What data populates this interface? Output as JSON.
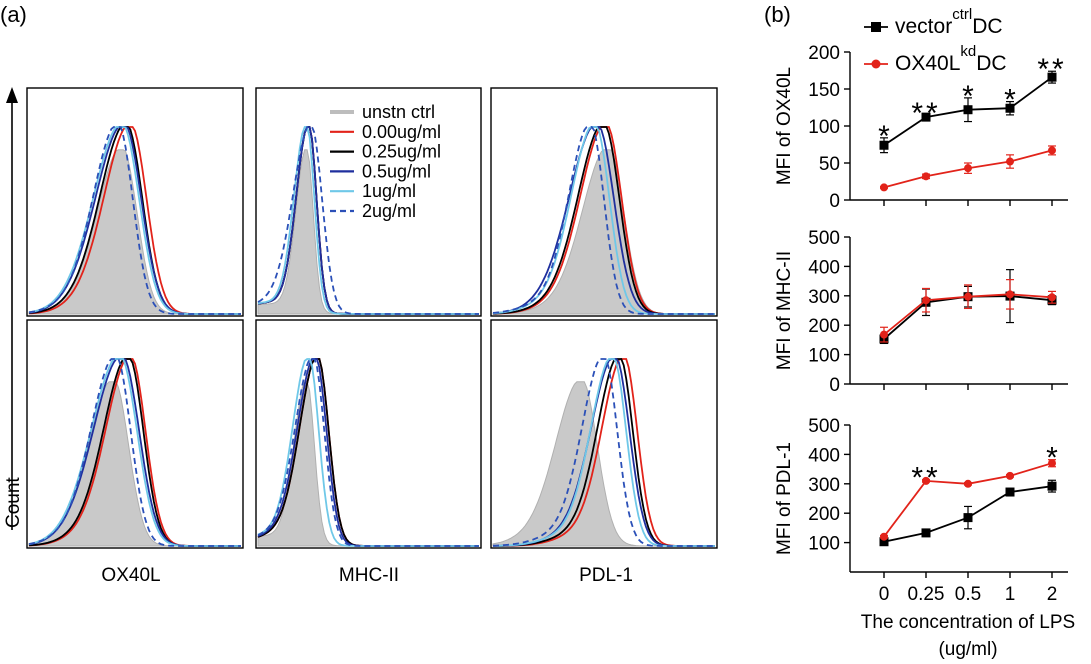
{
  "panel_a_label": "(a)",
  "panel_b_label": "(b)",
  "count_label": "Count",
  "histogram_markers": [
    "OX40L",
    "MHC-II",
    "PDL-1"
  ],
  "legend_a": [
    {
      "label": "unstn ctrl",
      "color": "#bdbdbd",
      "style": "fill"
    },
    {
      "label": "0.00ug/ml",
      "color": "#e2231a",
      "style": "solid"
    },
    {
      "label": "0.25ug/ml",
      "color": "#000000",
      "style": "solid"
    },
    {
      "label": "0.5ug/ml",
      "color": "#1f2f9e",
      "style": "solid"
    },
    {
      "label": "1ug/ml",
      "color": "#6fc8e8",
      "style": "solid"
    },
    {
      "label": "2ug/ml",
      "color": "#2b50b8",
      "style": "dashed"
    }
  ],
  "legend_b": [
    {
      "base": "vector",
      "sup": "ctrl",
      "tail": "DC",
      "color": "#000000",
      "marker": "square"
    },
    {
      "base": "OX40L",
      "sup": "kd",
      "tail": "DC",
      "color": "#e2231a",
      "marker": "circle"
    }
  ],
  "xlabel_line1": "The concentration of LPS",
  "xlabel_line2": "(ug/ml)",
  "chart_data": [
    {
      "type": "line",
      "ylabel": "MFI of OX40L",
      "categories": [
        "0",
        "0.25",
        "0.5",
        "1",
        "2"
      ],
      "ylim": [
        0,
        200
      ],
      "yticks": [
        0,
        50,
        100,
        150,
        200
      ],
      "series": [
        {
          "name": "vector ctrl DC",
          "values": [
            74,
            112,
            122,
            124,
            166
          ],
          "errors": [
            10,
            3,
            16,
            9,
            8
          ]
        },
        {
          "name": "OX40L kd DC",
          "values": [
            17,
            32,
            43,
            52,
            67
          ],
          "errors": [
            1,
            3,
            7,
            9,
            6
          ]
        }
      ],
      "annotations": [
        "*",
        "**",
        "*",
        "*",
        "**"
      ]
    },
    {
      "type": "line",
      "ylabel": "MFI of MHC-II",
      "categories": [
        "0",
        "0.25",
        "0.5",
        "1",
        "2"
      ],
      "ylim": [
        0,
        500
      ],
      "yticks": [
        0,
        100,
        200,
        300,
        400,
        500
      ],
      "series": [
        {
          "name": "vector ctrl DC",
          "values": [
            153,
            278,
            297,
            299,
            285
          ],
          "errors": [
            15,
            45,
            35,
            90,
            15
          ]
        },
        {
          "name": "OX40L kd DC",
          "values": [
            168,
            285,
            297,
            305,
            295
          ],
          "errors": [
            25,
            40,
            40,
            50,
            20
          ]
        }
      ],
      "annotations": [
        "",
        "",
        "",
        "",
        ""
      ]
    },
    {
      "type": "line",
      "ylabel": "MFI of PDL-1",
      "categories": [
        "0",
        "0.25",
        "0.5",
        "1",
        "2"
      ],
      "ylim": [
        0,
        500
      ],
      "yticks": [
        100,
        200,
        300,
        400,
        500
      ],
      "series": [
        {
          "name": "vector ctrl DC",
          "values": [
            103,
            133,
            185,
            272,
            292
          ],
          "errors": [
            6,
            6,
            38,
            6,
            20
          ]
        },
        {
          "name": "OX40L kd DC",
          "values": [
            120,
            310,
            300,
            327,
            370
          ],
          "errors": [
            4,
            4,
            4,
            4,
            12
          ]
        }
      ],
      "annotations": [
        "",
        "**",
        "",
        "",
        "*"
      ]
    }
  ]
}
